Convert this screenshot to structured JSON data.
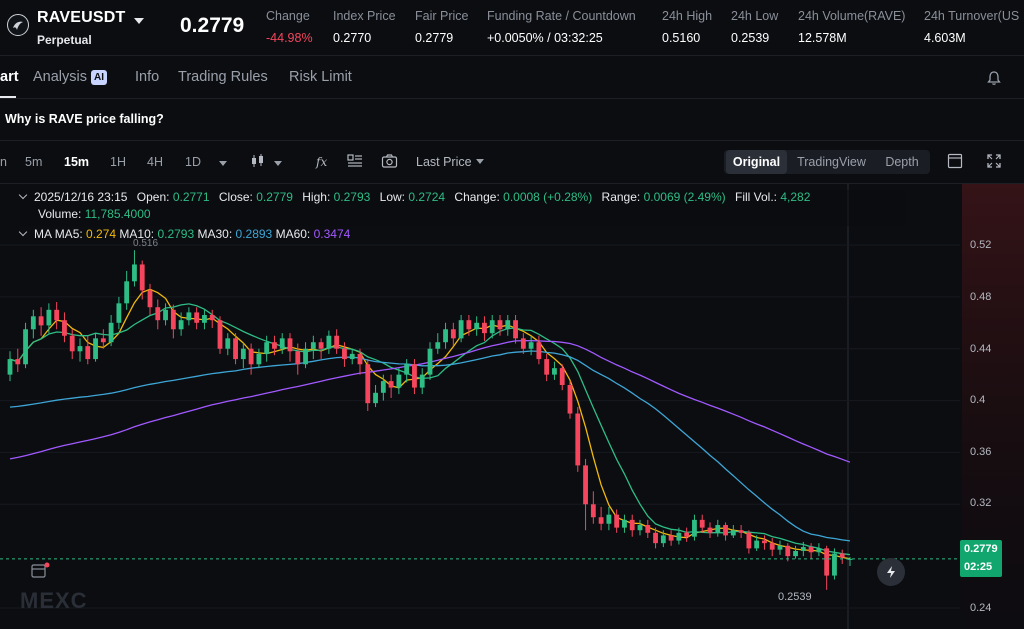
{
  "ticker": {
    "symbol": "RAVEUSDT",
    "contract_type": "Perpetual",
    "last_price": "0.2779",
    "stats": [
      {
        "label": "Change",
        "value": "-44.98%",
        "tone": "neg"
      },
      {
        "label": "Index Price",
        "value": "0.2770",
        "tone": ""
      },
      {
        "label": "Fair Price",
        "value": "0.2779",
        "tone": ""
      },
      {
        "label": "Funding Rate / Countdown",
        "value": "+0.0050% / 03:32:25",
        "tone": ""
      },
      {
        "label": "24h High",
        "value": "0.5160",
        "tone": ""
      },
      {
        "label": "24h Low",
        "value": "0.2539",
        "tone": ""
      },
      {
        "label": "24h Volume(RAVE)",
        "value": "12.578M",
        "tone": ""
      },
      {
        "label": "24h Turnover(US",
        "value": "4.603M",
        "tone": ""
      }
    ]
  },
  "tabs": [
    {
      "label": "art",
      "active": true
    },
    {
      "label": "Analysis",
      "badge": "AI"
    },
    {
      "label": "Info"
    },
    {
      "label": "Trading Rules"
    },
    {
      "label": "Risk Limit"
    }
  ],
  "question": "Why is RAVE price falling?",
  "toolbar": {
    "timeframes": [
      {
        "label": "n",
        "active": false
      },
      {
        "label": "5m",
        "active": false
      },
      {
        "label": "15m",
        "active": true
      },
      {
        "label": "1H",
        "active": false
      },
      {
        "label": "4H",
        "active": false
      },
      {
        "label": "1D",
        "active": false
      }
    ],
    "price_source": "Last Price",
    "views": [
      {
        "label": "Original",
        "active": true
      },
      {
        "label": "TradingView",
        "active": false
      },
      {
        "label": "Depth",
        "active": false
      }
    ]
  },
  "ohlc": {
    "date": "2025/12/16 23:15",
    "open_label": "Open:",
    "open": "0.2771",
    "close_label": "Close:",
    "close": "0.2779",
    "high_label": "High:",
    "high": "0.2793",
    "low_label": "Low:",
    "low": "0.2724",
    "change_label": "Change:",
    "change": "0.0008 (+0.28%)",
    "range_label": "Range:",
    "range": "0.0069 (2.49%)",
    "fillvol_label": "Fill Vol.:",
    "fillvol": "4,282",
    "volume_label": "Volume:",
    "volume": "11,785.4000"
  },
  "ma": {
    "label": "MA",
    "ma5_label": "MA5:",
    "ma5": "0.274",
    "ma10_label": "MA10:",
    "ma10": "0.2793",
    "ma30_label": "MA30:",
    "ma30": "0.2893",
    "ma60_label": "MA60:",
    "ma60": "0.3474"
  },
  "chart": {
    "yaxis": [
      "0.52",
      "0.48",
      "0.44",
      "0.4",
      "0.36",
      "0.32",
      "0.24"
    ],
    "current_price": "0.2779",
    "countdown": "02:25",
    "high_marker": "0.516",
    "low_marker": "0.2539",
    "watermark": "MEXC",
    "up_color": "#2ebd85",
    "down_color": "#f6465d"
  },
  "chart_data": {
    "type": "candlestick",
    "ylim": [
      0.22,
      0.56
    ],
    "yticks": [
      0.52,
      0.48,
      0.44,
      0.4,
      0.36,
      0.32,
      0.24
    ],
    "candles": [
      [
        0.42,
        0.432,
        0.438,
        0.415
      ],
      [
        0.432,
        0.428,
        0.44,
        0.422
      ],
      [
        0.428,
        0.455,
        0.46,
        0.425
      ],
      [
        0.455,
        0.465,
        0.47,
        0.448
      ],
      [
        0.465,
        0.458,
        0.472,
        0.45
      ],
      [
        0.458,
        0.47,
        0.475,
        0.452
      ],
      [
        0.47,
        0.462,
        0.476,
        0.455
      ],
      [
        0.462,
        0.45,
        0.468,
        0.445
      ],
      [
        0.45,
        0.438,
        0.455,
        0.432
      ],
      [
        0.438,
        0.442,
        0.448,
        0.43
      ],
      [
        0.442,
        0.432,
        0.45,
        0.428
      ],
      [
        0.432,
        0.448,
        0.452,
        0.43
      ],
      [
        0.448,
        0.445,
        0.455,
        0.44
      ],
      [
        0.445,
        0.46,
        0.466,
        0.442
      ],
      [
        0.46,
        0.475,
        0.48,
        0.455
      ],
      [
        0.475,
        0.492,
        0.5,
        0.47
      ],
      [
        0.492,
        0.505,
        0.516,
        0.488
      ],
      [
        0.505,
        0.485,
        0.508,
        0.478
      ],
      [
        0.485,
        0.472,
        0.49,
        0.466
      ],
      [
        0.472,
        0.462,
        0.478,
        0.455
      ],
      [
        0.462,
        0.47,
        0.475,
        0.458
      ],
      [
        0.47,
        0.455,
        0.474,
        0.448
      ],
      [
        0.455,
        0.462,
        0.468,
        0.45
      ],
      [
        0.462,
        0.468,
        0.472,
        0.458
      ],
      [
        0.468,
        0.46,
        0.472,
        0.455
      ],
      [
        0.46,
        0.466,
        0.47,
        0.455
      ],
      [
        0.466,
        0.462,
        0.47,
        0.456
      ],
      [
        0.462,
        0.44,
        0.465,
        0.436
      ],
      [
        0.44,
        0.448,
        0.452,
        0.435
      ],
      [
        0.448,
        0.432,
        0.452,
        0.428
      ],
      [
        0.432,
        0.44,
        0.445,
        0.425
      ],
      [
        0.44,
        0.428,
        0.444,
        0.42
      ],
      [
        0.428,
        0.436,
        0.44,
        0.425
      ],
      [
        0.436,
        0.445,
        0.45,
        0.43
      ],
      [
        0.445,
        0.44,
        0.45,
        0.435
      ],
      [
        0.44,
        0.448,
        0.452,
        0.436
      ],
      [
        0.448,
        0.438,
        0.452,
        0.43
      ],
      [
        0.438,
        0.428,
        0.444,
        0.42
      ],
      [
        0.428,
        0.44,
        0.445,
        0.425
      ],
      [
        0.44,
        0.445,
        0.45,
        0.432
      ],
      [
        0.445,
        0.44,
        0.448,
        0.432
      ],
      [
        0.44,
        0.45,
        0.454,
        0.436
      ],
      [
        0.45,
        0.44,
        0.455,
        0.436
      ],
      [
        0.44,
        0.432,
        0.445,
        0.426
      ],
      [
        0.432,
        0.436,
        0.44,
        0.428
      ],
      [
        0.436,
        0.428,
        0.44,
        0.42
      ],
      [
        0.428,
        0.398,
        0.432,
        0.392
      ],
      [
        0.398,
        0.406,
        0.412,
        0.395
      ],
      [
        0.406,
        0.415,
        0.42,
        0.4
      ],
      [
        0.415,
        0.41,
        0.42,
        0.402
      ],
      [
        0.41,
        0.42,
        0.425,
        0.405
      ],
      [
        0.42,
        0.428,
        0.432,
        0.414
      ],
      [
        0.428,
        0.41,
        0.432,
        0.405
      ],
      [
        0.41,
        0.42,
        0.425,
        0.405
      ],
      [
        0.42,
        0.44,
        0.445,
        0.416
      ],
      [
        0.44,
        0.445,
        0.452,
        0.436
      ],
      [
        0.445,
        0.455,
        0.46,
        0.44
      ],
      [
        0.455,
        0.448,
        0.46,
        0.442
      ],
      [
        0.448,
        0.462,
        0.466,
        0.445
      ],
      [
        0.462,
        0.455,
        0.466,
        0.45
      ],
      [
        0.455,
        0.46,
        0.465,
        0.45
      ],
      [
        0.46,
        0.452,
        0.465,
        0.446
      ],
      [
        0.452,
        0.462,
        0.466,
        0.448
      ],
      [
        0.462,
        0.455,
        0.466,
        0.45
      ],
      [
        0.455,
        0.462,
        0.466,
        0.45
      ],
      [
        0.462,
        0.448,
        0.466,
        0.444
      ],
      [
        0.448,
        0.44,
        0.452,
        0.436
      ],
      [
        0.44,
        0.445,
        0.45,
        0.435
      ],
      [
        0.445,
        0.432,
        0.45,
        0.428
      ],
      [
        0.432,
        0.42,
        0.436,
        0.415
      ],
      [
        0.42,
        0.425,
        0.43,
        0.416
      ],
      [
        0.425,
        0.412,
        0.428,
        0.408
      ],
      [
        0.412,
        0.39,
        0.415,
        0.386
      ],
      [
        0.39,
        0.35,
        0.395,
        0.345
      ],
      [
        0.35,
        0.32,
        0.355,
        0.3
      ],
      [
        0.32,
        0.31,
        0.33,
        0.305
      ],
      [
        0.31,
        0.305,
        0.318,
        0.3
      ],
      [
        0.305,
        0.312,
        0.318,
        0.3
      ],
      [
        0.312,
        0.302,
        0.316,
        0.298
      ],
      [
        0.302,
        0.308,
        0.312,
        0.298
      ],
      [
        0.308,
        0.3,
        0.312,
        0.295
      ],
      [
        0.3,
        0.304,
        0.308,
        0.296
      ],
      [
        0.304,
        0.298,
        0.308,
        0.294
      ],
      [
        0.298,
        0.29,
        0.302,
        0.286
      ],
      [
        0.29,
        0.296,
        0.3,
        0.287
      ],
      [
        0.296,
        0.292,
        0.3,
        0.288
      ],
      [
        0.292,
        0.298,
        0.302,
        0.289
      ],
      [
        0.298,
        0.295,
        0.302,
        0.291
      ],
      [
        0.295,
        0.308,
        0.312,
        0.292
      ],
      [
        0.308,
        0.302,
        0.312,
        0.298
      ],
      [
        0.302,
        0.298,
        0.306,
        0.294
      ],
      [
        0.298,
        0.304,
        0.308,
        0.295
      ],
      [
        0.304,
        0.296,
        0.306,
        0.292
      ],
      [
        0.296,
        0.3,
        0.304,
        0.294
      ],
      [
        0.3,
        0.298,
        0.304,
        0.294
      ],
      [
        0.298,
        0.286,
        0.3,
        0.282
      ],
      [
        0.286,
        0.292,
        0.296,
        0.284
      ],
      [
        0.292,
        0.29,
        0.296,
        0.285
      ],
      [
        0.29,
        0.285,
        0.294,
        0.28
      ],
      [
        0.285,
        0.288,
        0.292,
        0.281
      ],
      [
        0.288,
        0.28,
        0.29,
        0.276
      ],
      [
        0.28,
        0.284,
        0.288,
        0.278
      ],
      [
        0.284,
        0.287,
        0.291,
        0.28
      ],
      [
        0.287,
        0.283,
        0.29,
        0.278
      ],
      [
        0.283,
        0.286,
        0.29,
        0.28
      ],
      [
        0.286,
        0.265,
        0.288,
        0.254
      ],
      [
        0.265,
        0.282,
        0.286,
        0.262
      ],
      [
        0.282,
        0.279,
        0.285,
        0.274
      ],
      [
        0.2771,
        0.2779,
        0.2793,
        0.2724
      ]
    ]
  }
}
